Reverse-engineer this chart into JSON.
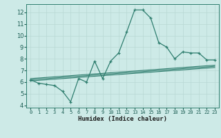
{
  "xlabel": "Humidex (Indice chaleur)",
  "ylabel": "",
  "x_values": [
    0,
    1,
    2,
    3,
    4,
    5,
    6,
    7,
    8,
    9,
    10,
    11,
    12,
    13,
    14,
    15,
    16,
    17,
    18,
    19,
    20,
    21,
    22,
    23
  ],
  "main_line": [
    6.2,
    5.9,
    5.8,
    5.7,
    5.2,
    4.3,
    6.3,
    6.0,
    7.8,
    6.3,
    7.8,
    8.5,
    10.3,
    12.2,
    12.2,
    11.5,
    9.4,
    9.0,
    8.0,
    8.6,
    8.5,
    8.5,
    7.9,
    7.9
  ],
  "upper_line": [
    6.3,
    6.35,
    6.4,
    6.45,
    6.5,
    6.55,
    6.6,
    6.65,
    6.7,
    6.75,
    6.8,
    6.85,
    6.9,
    6.95,
    7.0,
    7.05,
    7.1,
    7.15,
    7.2,
    7.25,
    7.3,
    7.35,
    7.4,
    7.45
  ],
  "mid_line": [
    6.2,
    6.25,
    6.3,
    6.35,
    6.4,
    6.45,
    6.5,
    6.55,
    6.6,
    6.65,
    6.7,
    6.75,
    6.8,
    6.85,
    6.9,
    6.95,
    7.0,
    7.05,
    7.1,
    7.15,
    7.2,
    7.25,
    7.3,
    7.35
  ],
  "lower_line": [
    6.1,
    6.15,
    6.2,
    6.25,
    6.3,
    6.35,
    6.4,
    6.45,
    6.5,
    6.55,
    6.6,
    6.65,
    6.7,
    6.75,
    6.8,
    6.85,
    6.9,
    6.95,
    7.0,
    7.05,
    7.1,
    7.15,
    7.2,
    7.25
  ],
  "line_color": "#2e7d6e",
  "bg_color": "#cdeae7",
  "grid_color": "#b8d8d4",
  "xlim": [
    -0.5,
    23.5
  ],
  "ylim": [
    3.8,
    12.7
  ],
  "yticks": [
    4,
    5,
    6,
    7,
    8,
    9,
    10,
    11,
    12
  ],
  "xticks": [
    0,
    1,
    2,
    3,
    4,
    5,
    6,
    7,
    8,
    9,
    10,
    11,
    12,
    13,
    14,
    15,
    16,
    17,
    18,
    19,
    20,
    21,
    22,
    23
  ]
}
